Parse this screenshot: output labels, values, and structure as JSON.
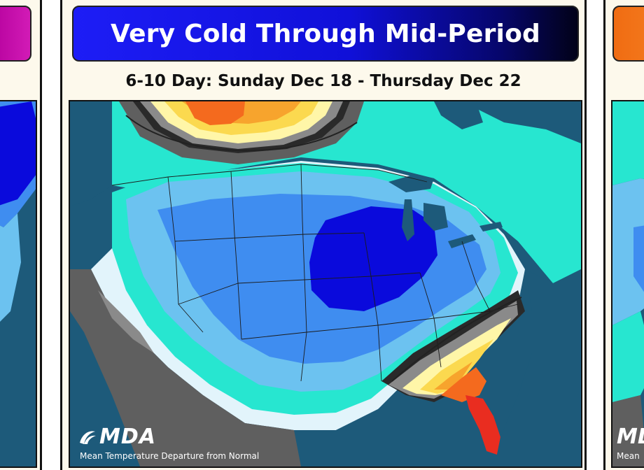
{
  "center_panel": {
    "title": "Very Cold Through Mid-Period",
    "date_range": "6-10 Day: Sunday Dec 18 - Thursday Dec 22",
    "logo_text": "MDA",
    "map_caption": "Mean Temperature Departure from Normal",
    "banner_colors": [
      "#1d1df6",
      "#020218"
    ]
  },
  "left_panel": {
    "banner_color": "#c816aa"
  },
  "right_panel": {
    "banner_color": "#f27520",
    "logo_text": "MDA",
    "map_caption": "Mean"
  },
  "map_colors": {
    "ocean": "#1d5a7a",
    "land_outside": "#5f5f5f",
    "very_cold": "#0a0adc",
    "cold": "#3f8df0",
    "cool": "#6cc2f0",
    "slightly_cool": "#27e6d0",
    "near_normal": "#e2f4fb",
    "neutral_gray": "#8a8a8a",
    "slightly_warm": "#fff6a8",
    "warm": "#fbd94f",
    "warmer": "#f7a42d",
    "hot": "#f46a1e",
    "very_hot": "#e92d20"
  }
}
